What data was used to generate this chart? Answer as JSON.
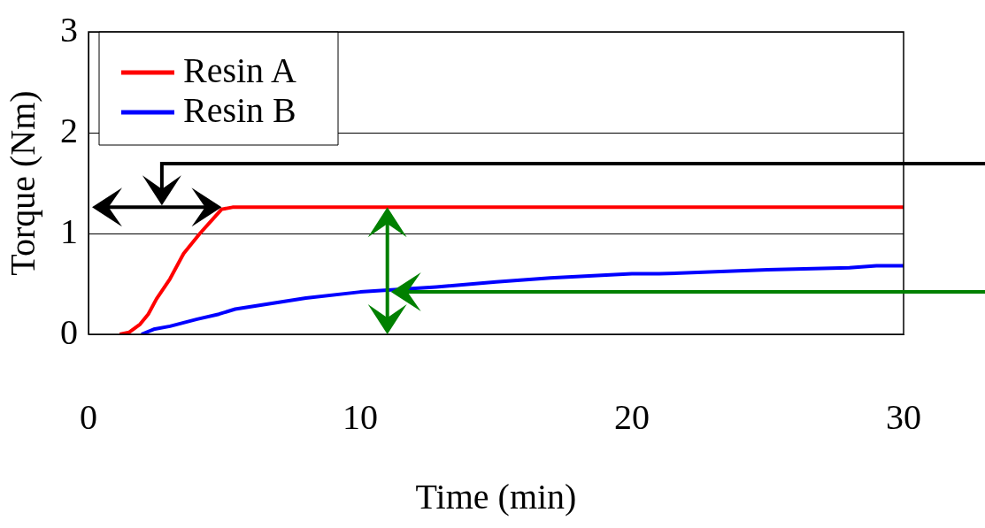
{
  "chart_data": {
    "type": "line",
    "xlabel": "Time (min)",
    "ylabel": "Torque (Nm)",
    "xlim": [
      0,
      30
    ],
    "xticks": [
      0,
      10,
      20,
      30
    ],
    "ylim": [
      0,
      3
    ],
    "yticks": [
      0,
      1,
      2,
      3
    ],
    "grid": "y",
    "legend": "top left",
    "marker": "none",
    "line_style": "solid",
    "series": [
      {
        "name": "Resin A",
        "color": "#ff0000",
        "x": [
          1.15,
          1.5,
          1.9,
          2.2,
          2.5,
          3,
          3.5,
          4.1,
          4.6,
          4.9,
          5.3,
          10,
          20,
          30
        ],
        "values": [
          0,
          0.02,
          0.1,
          0.2,
          0.35,
          0.55,
          0.8,
          1.0,
          1.15,
          1.24,
          1.26,
          1.26,
          1.26,
          1.26
        ]
      },
      {
        "name": "Resin B",
        "color": "#0000ff",
        "x": [
          1.95,
          2.4,
          3,
          4,
          4.8,
          5.4,
          8,
          10,
          12.8,
          15,
          17,
          20,
          21,
          25,
          28,
          29,
          30
        ],
        "values": [
          0,
          0.05,
          0.08,
          0.15,
          0.2,
          0.25,
          0.36,
          0.42,
          0.47,
          0.52,
          0.56,
          0.6,
          0.6,
          0.64,
          0.66,
          0.68,
          0.68
        ]
      }
    ]
  }
}
